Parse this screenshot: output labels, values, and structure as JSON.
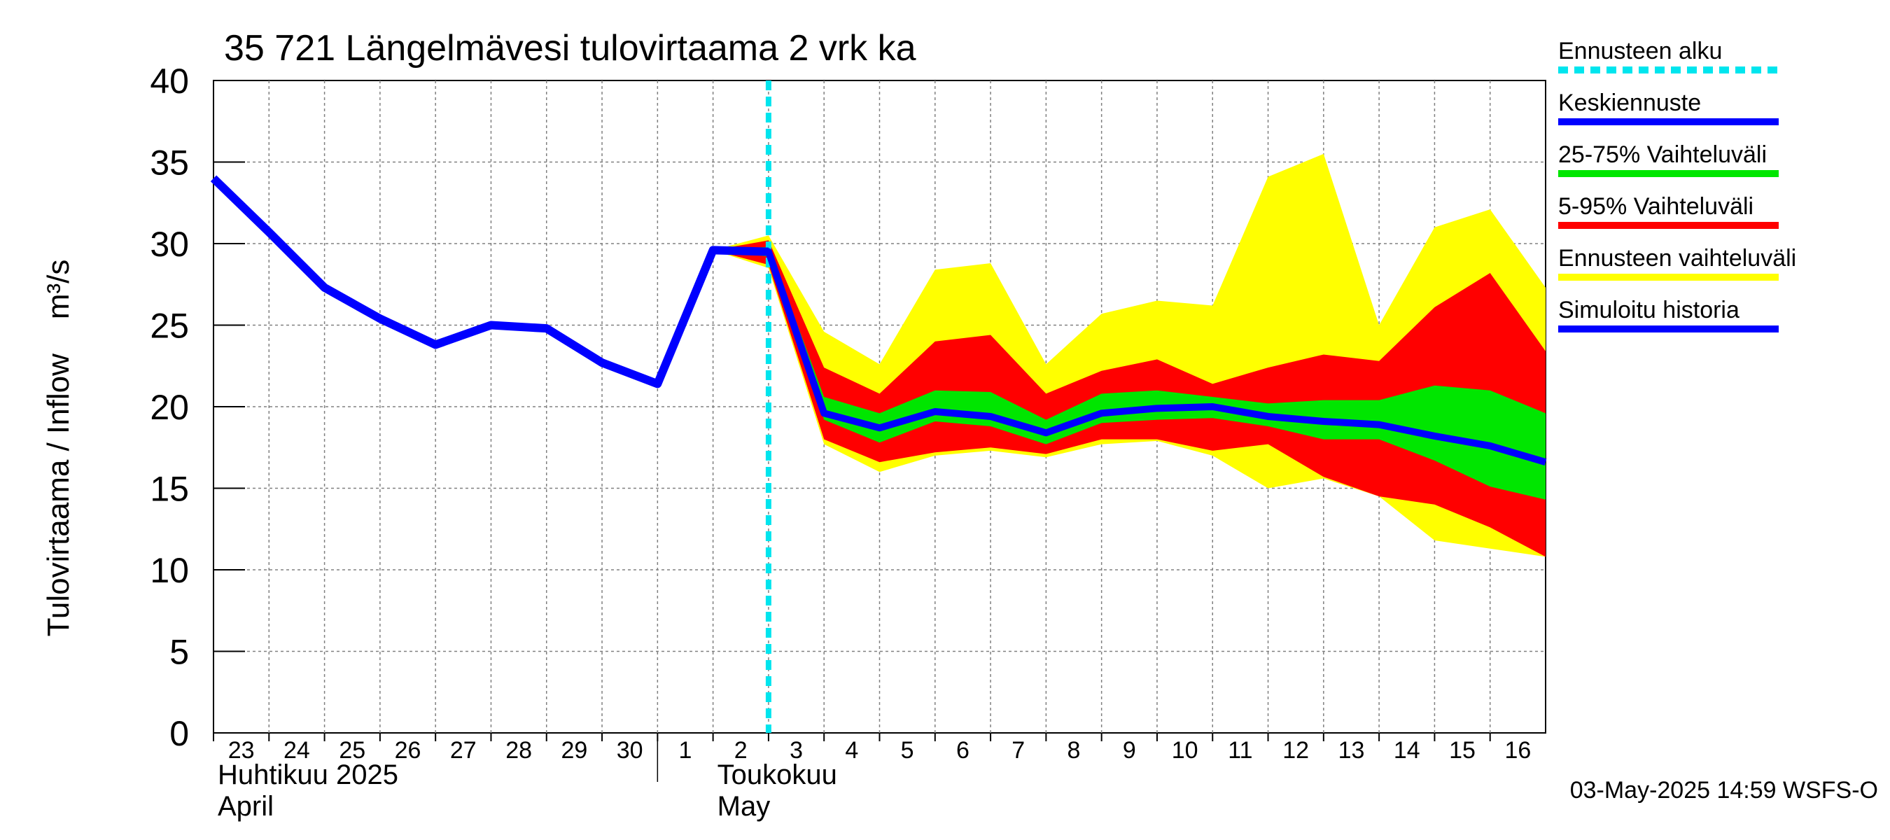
{
  "chart_data": {
    "type": "area",
    "title": "35 721 Längelmävesi tulovirtaama 2 vrk ka",
    "ylabel": "Tulovirtaama / Inflow    m³/s",
    "ylim": [
      0,
      40
    ],
    "yticks": [
      "0",
      "5",
      "10",
      "15",
      "20",
      "25",
      "30",
      "35",
      "40"
    ],
    "x_range": [
      0,
      24
    ],
    "x_day_labels": [
      "23",
      "24",
      "25",
      "26",
      "27",
      "28",
      "29",
      "30",
      "1",
      "2",
      "3",
      "4",
      "5",
      "6",
      "7",
      "8",
      "9",
      "10",
      "11",
      "12",
      "13",
      "14",
      "15",
      "16"
    ],
    "month_labels": [
      {
        "fi": "Huhtikuu  2025",
        "en": "April",
        "x": 0
      },
      {
        "fi": "Toukokuu",
        "en": "May",
        "x": 9
      }
    ],
    "month_divider_x": 8,
    "forecast_start_x": 10.0,
    "colors": {
      "forecast_start": "#00e5ee",
      "mean": "#0000ff",
      "band_25_75": "#00e600",
      "band_5_95": "#ff0000",
      "band_full": "#ffff00",
      "history": "#0000ff",
      "grid": "#808080"
    },
    "series": {
      "history": {
        "name": "Simuloitu historia",
        "x": [
          0,
          1,
          2,
          3,
          4,
          5,
          6,
          7,
          8,
          9,
          10
        ],
        "values": [
          34.0,
          30.7,
          27.3,
          25.4,
          23.8,
          25.0,
          24.8,
          22.7,
          21.4,
          29.6,
          29.5
        ]
      },
      "mean": {
        "name": "Keskiennuste",
        "x": [
          9,
          10,
          11,
          12,
          13,
          14,
          15,
          16,
          17,
          18,
          19,
          20,
          21,
          22,
          23,
          24
        ],
        "values": [
          29.6,
          29.5,
          19.6,
          18.7,
          19.7,
          19.4,
          18.4,
          19.6,
          19.9,
          20.0,
          19.4,
          19.1,
          18.9,
          18.2,
          17.6,
          16.6
        ]
      },
      "band_full": {
        "name": "Ennusteen vaihteluväli",
        "x": [
          9,
          10,
          11,
          12,
          13,
          14,
          15,
          16,
          17,
          18,
          19,
          20,
          21,
          22,
          23,
          24
        ],
        "upper": [
          29.6,
          30.5,
          24.6,
          22.6,
          28.4,
          28.8,
          22.6,
          25.7,
          26.5,
          26.2,
          34.1,
          35.5,
          25.0,
          31.0,
          32.1,
          27.3
        ],
        "lower": [
          29.6,
          28.5,
          17.7,
          16.0,
          17.0,
          17.3,
          16.9,
          17.7,
          17.9,
          17.0,
          15.0,
          15.6,
          14.5,
          11.8,
          11.3,
          10.8
        ]
      },
      "band_5_95": {
        "name": "5-95% Vaihteluväli",
        "x": [
          9,
          10,
          11,
          12,
          13,
          14,
          15,
          16,
          17,
          18,
          19,
          20,
          21,
          22,
          23,
          24
        ],
        "upper": [
          29.6,
          30.2,
          22.4,
          20.8,
          24.0,
          24.4,
          20.8,
          22.2,
          22.9,
          21.4,
          22.4,
          23.2,
          22.8,
          26.1,
          28.2,
          23.4
        ],
        "lower": [
          29.6,
          28.7,
          18.0,
          16.6,
          17.2,
          17.5,
          17.1,
          18.0,
          18.0,
          17.3,
          17.7,
          15.7,
          14.5,
          14.0,
          12.6,
          10.8
        ]
      },
      "band_25_75": {
        "name": "25-75% Vaihteluväli",
        "x": [
          9,
          10,
          11,
          12,
          13,
          14,
          15,
          16,
          17,
          18,
          19,
          20,
          21,
          22,
          23,
          24
        ],
        "upper": [
          29.6,
          29.8,
          20.6,
          19.6,
          21.0,
          20.9,
          19.2,
          20.8,
          21.0,
          20.6,
          20.2,
          20.4,
          20.4,
          21.3,
          21.0,
          19.6
        ],
        "lower": [
          29.6,
          29.2,
          19.2,
          17.8,
          19.1,
          18.8,
          17.7,
          19.0,
          19.2,
          19.3,
          18.8,
          18.0,
          18.0,
          16.7,
          15.1,
          14.3
        ]
      }
    },
    "legend": [
      {
        "label": "Ennusteen alku",
        "key": "forecast_start",
        "style": "dashed"
      },
      {
        "label": "Keskiennuste",
        "key": "mean",
        "style": "solid"
      },
      {
        "label": "25-75% Vaihteluväli",
        "key": "band_25_75",
        "style": "solid"
      },
      {
        "label": "5-95% Vaihteluväli",
        "key": "band_5_95",
        "style": "solid"
      },
      {
        "label": "Ennusteen vaihteluväli",
        "key": "band_full",
        "style": "solid"
      },
      {
        "label": "Simuloitu historia",
        "key": "history",
        "style": "solid"
      }
    ],
    "timestamp": "03-May-2025 14:59 WSFS-O"
  }
}
